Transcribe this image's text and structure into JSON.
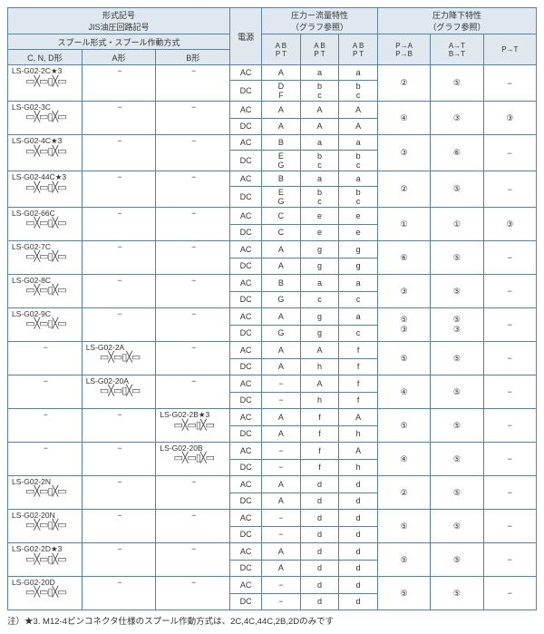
{
  "headers": {
    "model_top": "形式記号\nJIS油圧回路記号",
    "spool": "スプール形式・スプール作動方式",
    "cnd": "C, N, D形",
    "a": "A形",
    "b": "B形",
    "ps": "電源",
    "flow": "圧力ー流量特性\n（グラフ参照）",
    "drop": "圧力降下特性\n（グラフ参照）",
    "f1": "A  B\nP  T",
    "f2": "A  B\nP  T",
    "f3": "A  B\nP  T",
    "d1": "P→A\nP→B",
    "d2": "A→T\nB→T",
    "d3": "P→T"
  },
  "note": "注）★3. M12-4ピンコネクタ仕様のスプール作動方式は、2C,4C,44C,2B,2Dのみです",
  "rows": [
    {
      "m": [
        "LS-G02-2C★3",
        "−",
        "−"
      ],
      "p": "AC",
      "v": [
        "A",
        "a",
        "a",
        "②",
        "⑤",
        "−"
      ]
    },
    {
      "p": "DC",
      "v": [
        "D\nF",
        "b\nc",
        "b\nc",
        "",
        "",
        ""
      ]
    },
    {
      "m": [
        "LS-G02-3C",
        "−",
        "−"
      ],
      "p": "AC",
      "v": [
        "A",
        "A",
        "A",
        "④",
        "③",
        "③"
      ]
    },
    {
      "p": "DC",
      "v": [
        "A",
        "A",
        "A",
        "",
        "",
        ""
      ]
    },
    {
      "m": [
        "LS-G02-4C★3",
        "−",
        "−"
      ],
      "p": "AC",
      "v": [
        "B",
        "a",
        "a",
        "③",
        "⑥",
        "−"
      ]
    },
    {
      "p": "DC",
      "v": [
        "E\nG",
        "b\nc",
        "b\nc",
        "",
        "",
        ""
      ]
    },
    {
      "m": [
        "LS-G02-44C★3",
        "−",
        "−"
      ],
      "p": "AC",
      "v": [
        "B",
        "a",
        "a",
        "②",
        "⑤",
        "−"
      ]
    },
    {
      "p": "DC",
      "v": [
        "E\nG",
        "b\nc",
        "b\nc",
        "",
        "",
        ""
      ]
    },
    {
      "m": [
        "LS-G02-66C",
        "−",
        "−"
      ],
      "p": "AC",
      "v": [
        "C",
        "e",
        "e",
        "①",
        "①",
        "③"
      ]
    },
    {
      "p": "DC",
      "v": [
        "C",
        "e",
        "e",
        "",
        "",
        ""
      ]
    },
    {
      "m": [
        "LS-G02-7C",
        "−",
        "−"
      ],
      "p": "AC",
      "v": [
        "A",
        "g",
        "g",
        "⑥",
        "⑤",
        "−"
      ]
    },
    {
      "p": "DC",
      "v": [
        "A",
        "g",
        "g",
        "",
        "",
        ""
      ]
    },
    {
      "m": [
        "LS-G02-8C",
        "−",
        "−"
      ],
      "p": "AC",
      "v": [
        "B",
        "a",
        "a",
        "③",
        "⑤",
        "−"
      ]
    },
    {
      "p": "DC",
      "v": [
        "G",
        "c",
        "c",
        "",
        "",
        ""
      ]
    },
    {
      "m": [
        "LS-G02-9C",
        "−",
        "−"
      ],
      "p": "AC",
      "v": [
        "A",
        "g",
        "a",
        "⑤\n③",
        "⑤\n③",
        "−"
      ]
    },
    {
      "p": "DC",
      "v": [
        "G",
        "g",
        "c",
        "",
        "",
        ""
      ]
    },
    {
      "m": [
        "−",
        "LS-G02-2A",
        "−"
      ],
      "p": "AC",
      "v": [
        "A",
        "A",
        "f",
        "⑤",
        "⑤",
        "−"
      ]
    },
    {
      "p": "DC",
      "v": [
        "A",
        "h",
        "f",
        "",
        "",
        ""
      ]
    },
    {
      "m": [
        "−",
        "LS-G02-20A",
        "−"
      ],
      "p": "AC",
      "v": [
        "−",
        "A",
        "f",
        "④",
        "⑤",
        "−"
      ]
    },
    {
      "p": "DC",
      "v": [
        "−",
        "h",
        "f",
        "",
        "",
        ""
      ]
    },
    {
      "m": [
        "−",
        "−",
        "LS-G02-2B★3"
      ],
      "p": "AC",
      "v": [
        "A",
        "f",
        "A",
        "⑤",
        "⑤",
        "−"
      ]
    },
    {
      "p": "DC",
      "v": [
        "A",
        "f",
        "h",
        "",
        "",
        ""
      ]
    },
    {
      "m": [
        "−",
        "−",
        "LS-G02-20B"
      ],
      "p": "AC",
      "v": [
        "−",
        "f",
        "A",
        "④",
        "⑤",
        "−"
      ]
    },
    {
      "p": "DC",
      "v": [
        "−",
        "f",
        "h",
        "",
        "",
        ""
      ]
    },
    {
      "m": [
        "LS-G02-2N",
        "−",
        "−"
      ],
      "p": "AC",
      "v": [
        "A",
        "d",
        "d",
        "②",
        "⑤",
        "−"
      ]
    },
    {
      "p": "DC",
      "v": [
        "A",
        "d",
        "d",
        "",
        "",
        ""
      ]
    },
    {
      "m": [
        "LS-G02-20N",
        "−",
        "−"
      ],
      "p": "AC",
      "v": [
        "−",
        "d",
        "d",
        "⑤",
        "⑤",
        "−"
      ]
    },
    {
      "p": "DC",
      "v": [
        "−",
        "d",
        "d",
        "",
        "",
        ""
      ]
    },
    {
      "m": [
        "LS-G02-2D★3",
        "−",
        "−"
      ],
      "p": "AC",
      "v": [
        "A",
        "d",
        "d",
        "⑤",
        "⑤",
        "−"
      ]
    },
    {
      "p": "DC",
      "v": [
        "A",
        "d",
        "d",
        "",
        "",
        ""
      ]
    },
    {
      "m": [
        "LS-G02-20D",
        "−",
        "−"
      ],
      "p": "AC",
      "v": [
        "−",
        "d",
        "d",
        "⑤",
        "⑤",
        "−"
      ]
    },
    {
      "p": "DC",
      "v": [
        "−",
        "d",
        "d",
        "",
        "",
        ""
      ]
    }
  ]
}
